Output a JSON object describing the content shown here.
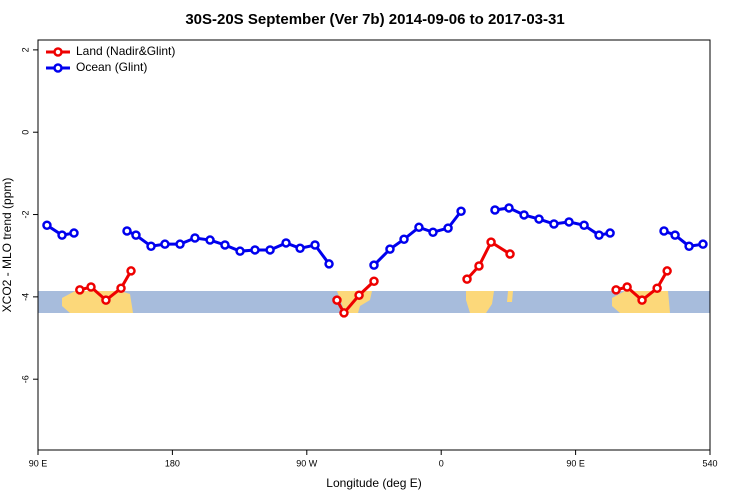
{
  "chart_data": {
    "type": "line",
    "title": "30S-20S September (Ver 7b)   2014-09-06 to 2017-03-31",
    "xlabel": "Longitude (deg E)",
    "ylabel": "XCO2 - MLO trend (ppm)",
    "xlim": [
      90,
      540
    ],
    "ylim": [
      -7.72,
      2.24
    ],
    "xticks": [
      {
        "value": 90,
        "label": "90 E"
      },
      180,
      {
        "value": 270,
        "label": "90 W"
      },
      {
        "value": 360,
        "label": "0"
      },
      {
        "value": 450,
        "label": "90 E"
      },
      540
    ],
    "yticks": [
      2,
      0,
      -2,
      -4,
      -6
    ],
    "grid": false,
    "legend": "upper left",
    "series": [
      {
        "name": "Land (Nadir&Glint)",
        "color": "#ee0000",
        "x": [
          118,
          125.5,
          135.5,
          145.6,
          152.3,
          null,
          290.2,
          294.9,
          305,
          315,
          null,
          377.3,
          385.3,
          393.4,
          406.1,
          null,
          477.1,
          484.5,
          494.5,
          504.6,
          511.3
        ],
        "values": [
          -3.83,
          -3.76,
          -4.08,
          -3.79,
          -3.37,
          null,
          -4.08,
          -4.39,
          -3.96,
          -3.62,
          null,
          -3.57,
          -3.25,
          -2.67,
          -2.96,
          null,
          -3.83,
          -3.76,
          -4.08,
          -3.79,
          -3.37
        ]
      },
      {
        "name": "Ocean (Glint)",
        "color": "#0000ee",
        "x": [
          96,
          106.1,
          114.1,
          null,
          149.6,
          155.6,
          165.7,
          175,
          185.1,
          195.1,
          205.2,
          215.2,
          225.3,
          235.3,
          245.4,
          256.1,
          265.5,
          275.5,
          284.9,
          null,
          315,
          325.7,
          335.1,
          345.1,
          354.5,
          364.6,
          373.3,
          null,
          396,
          405.4,
          415.5,
          425.5,
          435.5,
          445.6,
          455.7,
          465.7,
          473.1,
          null,
          509.2,
          516.6,
          526,
          535.3
        ],
        "values": [
          -2.26,
          -2.5,
          -2.45,
          null,
          -2.4,
          -2.5,
          -2.77,
          -2.72,
          -2.72,
          -2.57,
          -2.62,
          -2.74,
          -2.89,
          -2.86,
          -2.86,
          -2.69,
          -2.82,
          -2.74,
          -3.2,
          null,
          -3.23,
          -2.84,
          -2.6,
          -2.31,
          -2.43,
          -2.33,
          -1.92,
          null,
          -1.89,
          -1.84,
          -2.01,
          -2.11,
          -2.23,
          -2.18,
          -2.26,
          -2.5,
          -2.45,
          null,
          -2.4,
          -2.5,
          -2.77,
          -2.72
        ]
      }
    ]
  }
}
